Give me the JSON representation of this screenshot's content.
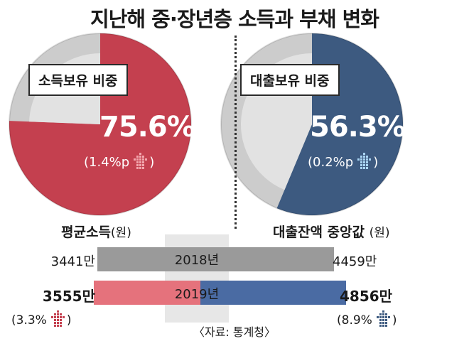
{
  "title": "지난해 중·장년층 소득과 부채 변화",
  "colors": {
    "income": "#c4404f",
    "income_light": "#e5727c",
    "debt": "#3d5a80",
    "debt_bar": "#4a6ba3",
    "gray": "#cccccc",
    "gray_dark": "#9a9a9a"
  },
  "icons": {
    "up_arrow_income": "dotted-up-arrow-icon",
    "up_arrow_debt": "dotted-up-arrow-icon"
  },
  "chart_data": [
    {
      "type": "pie",
      "label": "소득보유 비중",
      "value_text": "75.6%",
      "change_text": "(1.4%p",
      "slices": [
        {
          "label": "소득보유",
          "value": 75.6
        },
        {
          "label": "",
          "value": 24.4
        }
      ]
    },
    {
      "type": "pie",
      "label": "대출보유 비중",
      "value_text": "56.3%",
      "change_text": "(0.2%p",
      "slices": [
        {
          "label": "대출보유",
          "value": 56.3
        },
        {
          "label": "",
          "value": 43.7
        }
      ]
    },
    {
      "type": "bar",
      "categories": [
        "2018년",
        "2019년"
      ],
      "left": {
        "title": "평균소득",
        "unit": "(원)",
        "values": [
          3441,
          3555
        ],
        "value_labels": [
          "3441만",
          "3555만"
        ],
        "change_text": "(3.3%"
      },
      "right": {
        "title": "대출잔액 중앙값",
        "unit": "(원)",
        "values": [
          4459,
          4856
        ],
        "value_labels": [
          "4459만",
          "4856만"
        ],
        "change_text": "(8.9%"
      }
    }
  ],
  "source": "〈자료: 통계청〉"
}
